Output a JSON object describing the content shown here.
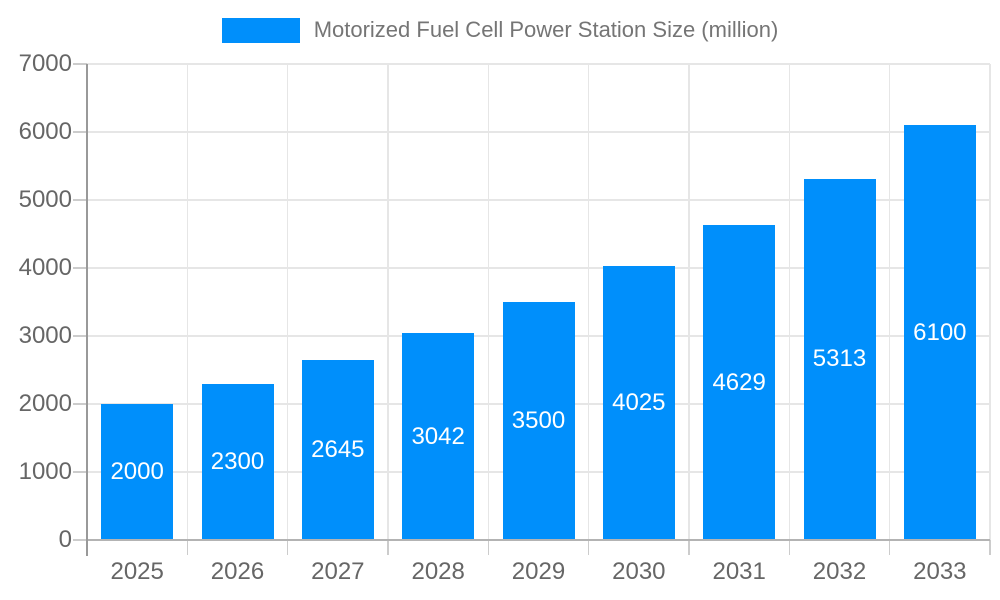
{
  "chart_data": {
    "type": "bar",
    "title": "Motorized Fuel Cell Power Station Size (million)",
    "categories": [
      "2025",
      "2026",
      "2027",
      "2028",
      "2029",
      "2030",
      "2031",
      "2032",
      "2033"
    ],
    "values": [
      2000,
      2300,
      2645,
      3042,
      3500,
      4025,
      4629,
      5313,
      6100
    ],
    "xlabel": "",
    "ylabel": "",
    "ylim": [
      0,
      7000
    ],
    "yticks": [
      0,
      1000,
      2000,
      3000,
      4000,
      5000,
      6000,
      7000
    ],
    "grid": true,
    "legend_position": "top",
    "colors": {
      "bar": "#008FFB",
      "bar_label": "#FFFFFF",
      "axis_text": "#666666",
      "legend_text": "#757575",
      "gridline": "#E6E6E6",
      "tick": "#CCCCCC",
      "y_axis_line": "#999999",
      "x_axis_line": "#B3B3B3",
      "background": "#FFFFFF"
    }
  }
}
